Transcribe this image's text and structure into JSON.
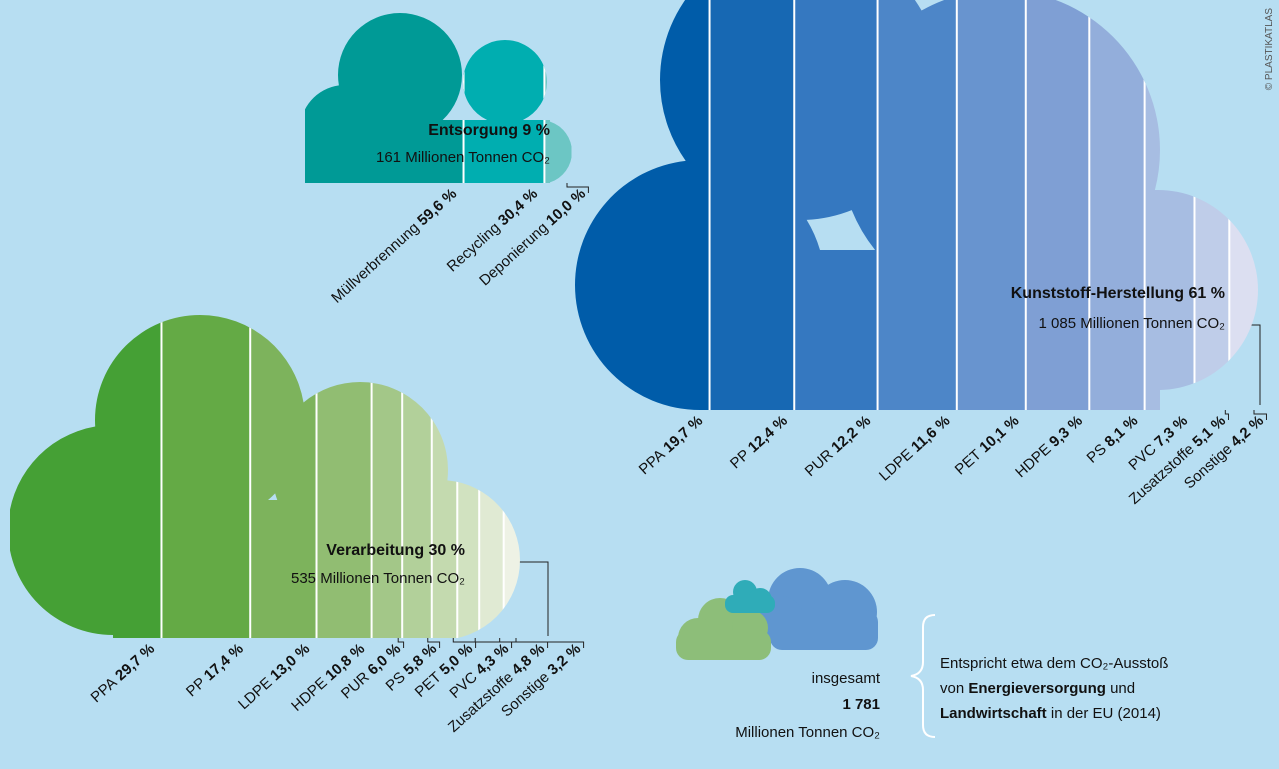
{
  "chart_data": [
    {
      "type": "cloud",
      "title": "Entsorgung 9 %",
      "subtitle": "161 Millionen Tonnen CO₂",
      "categories": [
        "Müllverbrennung",
        "Recycling",
        "Deponierung"
      ],
      "values": [
        59.6,
        30.4,
        10.0
      ],
      "value_labels": [
        "59,6 %",
        "30,4 %",
        "10,0 %"
      ],
      "colors": [
        "#009a96",
        "#00aeb0",
        "#6cc6c4"
      ]
    },
    {
      "type": "cloud",
      "title": "Kunststoff-Herstellung 61 %",
      "subtitle": "1 085 Millionen Tonnen CO₂",
      "categories": [
        "PPA",
        "PP",
        "PUR",
        "LDPE",
        "PET",
        "HDPE",
        "PS",
        "PVC",
        "Zusatzstoffe",
        "Sonstige"
      ],
      "values": [
        19.7,
        12.4,
        12.2,
        11.6,
        10.1,
        9.3,
        8.1,
        7.3,
        5.1,
        4.2
      ],
      "value_labels": [
        "19,7 %",
        "12,4 %",
        "12,2 %",
        "11,6 %",
        "10,1 %",
        "9,3 %",
        "8,1 %",
        "7,3 %",
        "5,1 %",
        "4,2 %"
      ],
      "colors": [
        "#005ca9",
        "#1768b3",
        "#3578c0",
        "#4d86c8",
        "#6894cf",
        "#7f9fd4",
        "#93aedb",
        "#a7bde2",
        "#bfcde9",
        "#dcdff1"
      ]
    },
    {
      "type": "cloud",
      "title": "Verarbeitung 30 %",
      "subtitle": "535 Millionen Tonnen CO₂",
      "categories": [
        "PPA",
        "PP",
        "LDPE",
        "HDPE",
        "PUR",
        "PS",
        "PET",
        "PVC",
        "Zusatzstoffe",
        "Sonstige"
      ],
      "values": [
        29.7,
        17.4,
        13.0,
        10.8,
        6.0,
        5.8,
        5.0,
        4.3,
        4.8,
        3.2
      ],
      "value_labels": [
        "29,7 %",
        "17,4 %",
        "13,0 %",
        "10,8 %",
        "6,0 %",
        "5,8 %",
        "5,0 %",
        "4,3 %",
        "4,8 %",
        "3,2 %"
      ],
      "colors": [
        "#45a035",
        "#64aa45",
        "#7db35c",
        "#91bd72",
        "#a3c788",
        "#b2d09a",
        "#c4daaf",
        "#d1e2c0",
        "#e0ead3",
        "#eef2e5"
      ]
    }
  ],
  "total": {
    "label": "insgesamt",
    "value": "1 781",
    "unit": "Millionen Tonnen CO₂"
  },
  "note": {
    "text1": "Entspricht etwa dem CO₂-Ausstoß",
    "text2": "von",
    "bold1": "Energieversorgung",
    "text3": "und",
    "bold2": "Landwirtschaft",
    "text4": "in der EU (2014)"
  },
  "credit": "© PLASTIKATLAS"
}
